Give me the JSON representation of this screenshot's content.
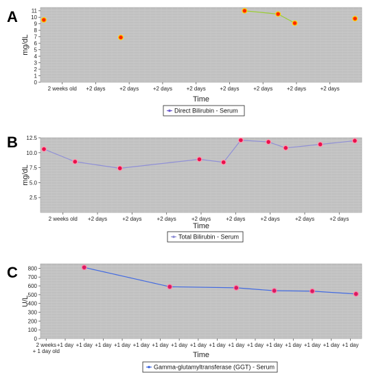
{
  "chart_data": [
    {
      "panel": "A",
      "type": "line",
      "xlabel": "Time",
      "ylabel": "mg/dL",
      "ylim": [
        0,
        11.5
      ],
      "yticks": [
        0,
        1,
        2,
        3,
        4,
        5,
        6,
        7,
        8,
        9,
        10,
        11
      ],
      "xtick_labels": [
        "2 weeks old",
        "+2 days",
        "+2 days",
        "+2 days",
        "+2 days",
        "+2 days",
        "+2 days",
        "+2 days",
        "+2 days"
      ],
      "grid": true,
      "legend": "bottom-center",
      "series": [
        {
          "name": "Direct Bilirubin - Serum",
          "legend_color": "#6a5acd",
          "points": [
            {
              "x": 0,
              "y": 9.6,
              "connected": false
            },
            {
              "x": 2.3,
              "y": 6.9,
              "connected": false
            },
            {
              "x": 6.0,
              "y": 11.0,
              "connected": true
            },
            {
              "x": 7.0,
              "y": 10.5,
              "connected": true
            },
            {
              "x": 7.5,
              "y": 9.1,
              "connected": true
            },
            {
              "x": 9.3,
              "y": 9.8,
              "connected": false
            }
          ],
          "line_color": "#9acd32",
          "marker_fill": "#ff2a00",
          "marker_stroke": "#ffd700"
        }
      ]
    },
    {
      "panel": "B",
      "type": "line",
      "xlabel": "Time",
      "ylabel": "mg/dL",
      "ylim": [
        0,
        12.5
      ],
      "yticks": [
        2.5,
        5.0,
        7.5,
        10.0,
        12.5
      ],
      "ytick_labels": [
        "2.5",
        "5.0",
        "7.5",
        "10.0",
        "12.5"
      ],
      "xtick_labels": [
        "2 weeks old",
        "+2 days",
        "+2 days",
        "+2 days",
        "+2 days",
        "+2 days",
        "+2 days",
        "+2 days",
        "+2 days"
      ],
      "grid": true,
      "legend": "bottom-center",
      "series": [
        {
          "name": "Total Bilirubin - Serum",
          "points": [
            {
              "x": 0,
              "y": 10.6
            },
            {
              "x": 0.9,
              "y": 8.5
            },
            {
              "x": 2.2,
              "y": 7.4
            },
            {
              "x": 4.5,
              "y": 8.9
            },
            {
              "x": 5.2,
              "y": 8.4
            },
            {
              "x": 5.7,
              "y": 12.1
            },
            {
              "x": 6.5,
              "y": 11.8
            },
            {
              "x": 7.0,
              "y": 10.8
            },
            {
              "x": 8.0,
              "y": 11.4
            },
            {
              "x": 9.0,
              "y": 12.0
            }
          ],
          "line_color": "#8f8fd6",
          "marker_fill": "#e8104c",
          "marker_stroke": "#ff9ab0"
        }
      ]
    },
    {
      "panel": "C",
      "type": "line",
      "xlabel": "Time",
      "ylabel": "U/L",
      "ylim": [
        0,
        850
      ],
      "yticks": [
        0,
        100,
        200,
        300,
        400,
        500,
        600,
        700,
        800
      ],
      "xtick_labels": [
        "2 weeks\n+ 1 day old",
        "+1 day",
        "+1 day",
        "+1 day",
        "+1 day",
        "+1 day",
        "+1 day",
        "+1 day",
        "+1 day",
        "+1 day",
        "+1 day",
        "+1 day",
        "+1 day",
        "+1 day",
        "+1 day",
        "+1 day",
        "+1 day"
      ],
      "grid": true,
      "legend": "bottom-center",
      "series": [
        {
          "name": "Gamma-glutamyltransferase (GGT) - Serum",
          "points": [
            {
              "x": 3,
              "y": 810
            },
            {
              "x": 7.5,
              "y": 590
            },
            {
              "x": 11,
              "y": 578
            },
            {
              "x": 13,
              "y": 545
            },
            {
              "x": 15,
              "y": 540
            },
            {
              "x": 17.3,
              "y": 508
            }
          ],
          "line_color": "#4169e1",
          "marker_fill": "#d81b60",
          "marker_stroke": "#ff7fa8"
        }
      ]
    }
  ]
}
